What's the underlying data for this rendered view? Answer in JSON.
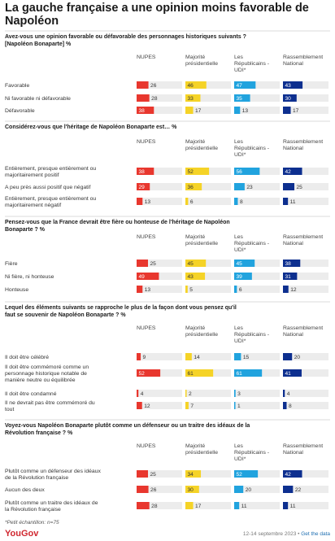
{
  "title": "La gauche française a une opinion moins favorable de Napoléon",
  "footnote": "*Petit échantillon: n=75",
  "brand": "YouGov",
  "credit_date": "12-14 septembre 2023",
  "credit_link": "Get the data",
  "colors": {
    "NUPES": "#e8372e",
    "Majorité présidentielle": "#f5d327",
    "Les Républicains - UDI*": "#21a3de",
    "Rassemblement National": "#0d2f8f",
    "track": "#ececec"
  },
  "chart_data": {
    "type": "bar",
    "series_names": [
      "NUPES",
      "Majorité présidentielle",
      "Les Républicains - UDI*",
      "Rassemblement National"
    ],
    "xlim": [
      0,
      100
    ],
    "panels": [
      {
        "question": "Avez-vous une opinion favorable ou défavorable des personnages historiques suivants ? [Napoléon Bonaparte] %",
        "rows": [
          {
            "label": "Favorable",
            "values": [
              26,
              46,
              47,
              43
            ]
          },
          {
            "label": "Ni favorable ni défavorable",
            "values": [
              28,
              33,
              35,
              30
            ]
          },
          {
            "label": "Défavorable",
            "values": [
              38,
              17,
              13,
              17
            ]
          }
        ]
      },
      {
        "question": "Considérez-vous que l'héritage de Napoléon Bonaparte est… %",
        "rows": [
          {
            "label": "Entièrement, presque entièrement ou majoritairement positif",
            "values": [
              38,
              52,
              56,
              42
            ]
          },
          {
            "label": "A peu près aussi positif que négatif",
            "values": [
              29,
              36,
              23,
              25
            ]
          },
          {
            "label": "Entièrement, presque entièrement ou majoritairement négatif",
            "values": [
              13,
              6,
              8,
              11
            ]
          }
        ]
      },
      {
        "question": "Pensez-vous que la France devrait être fière ou honteuse de l'héritage de Napoléon Bonaparte ? %",
        "rows": [
          {
            "label": "Fière",
            "values": [
              25,
              45,
              45,
              38
            ]
          },
          {
            "label": "Ni fière, ni honteuse",
            "values": [
              49,
              43,
              39,
              31
            ]
          },
          {
            "label": "Honteuse",
            "values": [
              13,
              5,
              6,
              12
            ]
          }
        ]
      },
      {
        "question": "Lequel des éléments suivants se rapproche le plus de la façon dont vous pensez qu'il faut se souvenir de Napoléon Bonaparte ? %",
        "rows": [
          {
            "label": "Il doit être célébré",
            "values": [
              9,
              14,
              15,
              20
            ]
          },
          {
            "label": "Il doit être commémoré comme un personnage historique notable de manière neutre ou équilibrée",
            "values": [
              52,
              61,
              61,
              41
            ]
          },
          {
            "label": "Il doit être condamné",
            "values": [
              4,
              2,
              3,
              4
            ]
          },
          {
            "label": "Il ne devrait pas être commémoré du tout",
            "values": [
              12,
              7,
              1,
              8
            ]
          }
        ]
      },
      {
        "question": "Voyez-vous Napoléon Bonaparte plutôt comme un défenseur ou un traitre des idéaux de la Révolution française ? %",
        "rows": [
          {
            "label": "Plutôt comme un défenseur des idéaux de la Révolution française",
            "values": [
              25,
              34,
              52,
              42
            ]
          },
          {
            "label": "Aucun des deux",
            "values": [
              26,
              30,
              20,
              22
            ]
          },
          {
            "label": "Plutôt comme un traitre des idéaux de la Révolution française",
            "values": [
              28,
              17,
              11,
              11
            ]
          }
        ]
      }
    ]
  }
}
